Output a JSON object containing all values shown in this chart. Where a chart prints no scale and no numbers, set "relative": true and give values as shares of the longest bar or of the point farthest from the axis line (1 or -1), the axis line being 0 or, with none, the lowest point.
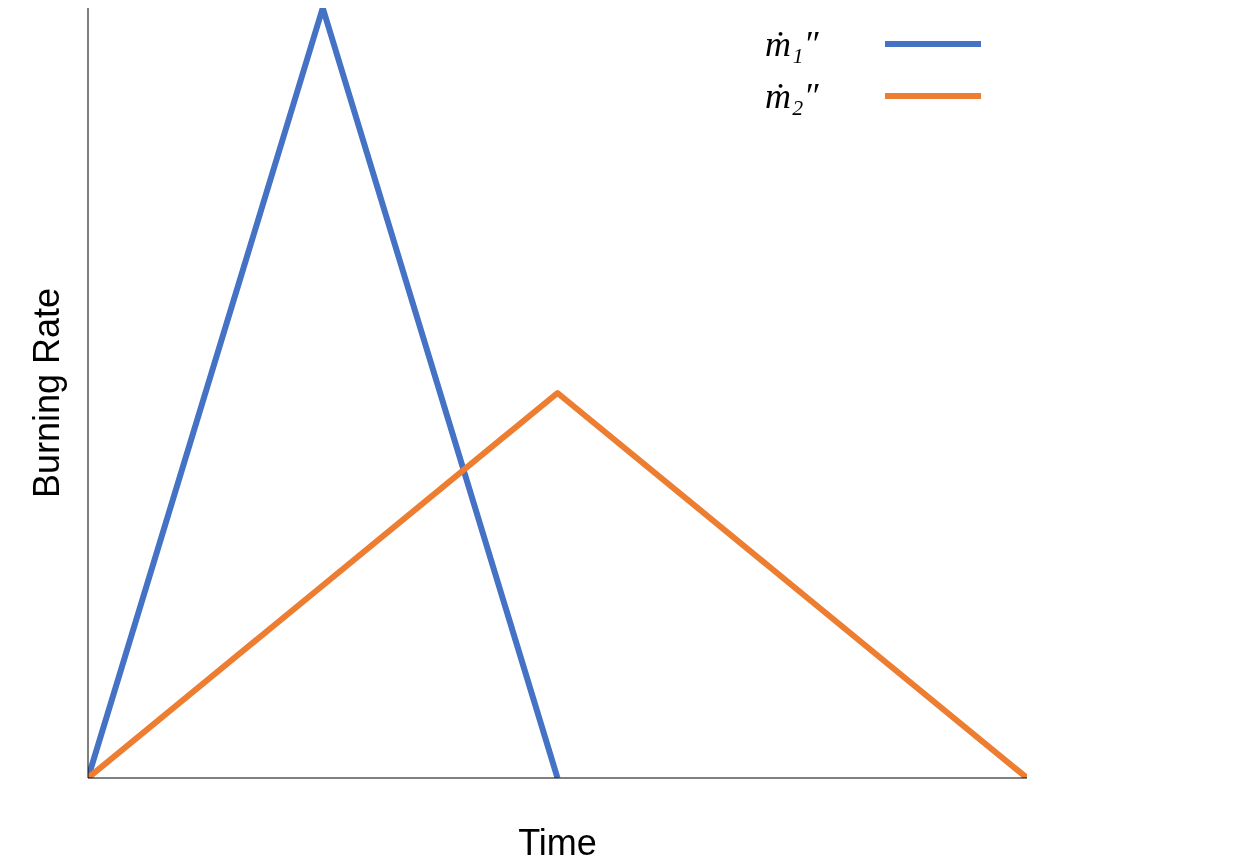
{
  "chart_data": {
    "type": "line",
    "xlabel": "Time",
    "ylabel": "Burning Rate",
    "relative": true,
    "categories": [
      null,
      null,
      null,
      null,
      null
    ],
    "series": [
      {
        "name": "ṁ₁″",
        "color": "#4472c4",
        "values": [
          0,
          1,
          0,
          null,
          null
        ]
      },
      {
        "name": "ṁ₂″",
        "color": "#ed7d31",
        "values": [
          0,
          0.25,
          0.5,
          0.25,
          0
        ]
      }
    ],
    "legend": "top right",
    "marker": "none",
    "line_style": "solid",
    "grid": false
  }
}
